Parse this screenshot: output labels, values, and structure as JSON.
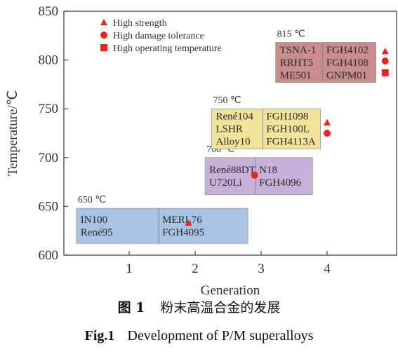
{
  "chart_data": {
    "type": "scatter",
    "xlabel": "Generation",
    "ylabel": "Temperature/℃",
    "xlim": [
      0,
      4.9
    ],
    "ylim": [
      600,
      850
    ],
    "xticks": [
      "1",
      "2",
      "3",
      "4"
    ],
    "yticks": [
      "600",
      "650",
      "700",
      "750",
      "800",
      "850"
    ],
    "legend": {
      "placement": "top-left",
      "entries": [
        {
          "label": "High strength",
          "marker": "triangle"
        },
        {
          "label": "High damage tolerance",
          "marker": "circle"
        },
        {
          "label": "High operating temperature",
          "marker": "square"
        }
      ]
    },
    "marker_color": "#e8231f",
    "groups": [
      {
        "temperature_label": "650 ℃",
        "temperature": 650,
        "generation": 1,
        "color": "#a9c3e4",
        "alloys": [
          [
            "IN100",
            "René95"
          ],
          [
            "MERL76",
            "FGH4095"
          ]
        ],
        "x_span": [
          -0.8,
          1.8
        ],
        "y_span": [
          612,
          648
        ],
        "markers": [
          {
            "type": "triangle",
            "x": 1.9,
            "y": 633
          }
        ]
      },
      {
        "temperature_label": "700 ℃",
        "temperature": 700,
        "generation": 2,
        "color": "#c8b1d8",
        "alloys": [
          [
            "René88DT",
            "U720Li"
          ],
          [
            "N18",
            "FGH4096"
          ]
        ],
        "x_span": [
          0.15,
          1.78
        ],
        "y_span": [
          662,
          700
        ],
        "markers": [
          {
            "type": "circle",
            "x": 2.9,
            "y": 682
          }
        ]
      },
      {
        "temperature_label": "750 ℃",
        "temperature": 750,
        "generation": 3,
        "color": "#f1e49a",
        "alloys": [
          [
            "René104",
            "LSHR",
            "Alloy10"
          ],
          [
            "FGH1098",
            "FGH100L",
            "FGH4113A"
          ]
        ],
        "x_span": [
          -0.75,
          0.9
        ],
        "y_span": [
          709,
          750
        ],
        "markers": [
          {
            "type": "triangle",
            "x": 4,
            "y": 736
          },
          {
            "type": "circle",
            "x": 4,
            "y": 725
          }
        ]
      },
      {
        "temperature_label": "815 ℃",
        "temperature": 815,
        "generation": 4,
        "color": "#c98d8d",
        "alloys": [
          [
            "TSNA-1",
            "RRHT5",
            "ME501"
          ],
          [
            "FGH4102",
            "FGH4108",
            "GNPM01"
          ]
        ],
        "x_span": [
          -0.78,
          0.74
        ],
        "y_span": [
          777,
          818
        ],
        "markers": [
          {
            "type": "triangle",
            "x": 4.88,
            "y": 809
          },
          {
            "type": "circle",
            "x": 4.88,
            "y": 799
          },
          {
            "type": "square",
            "x": 4.88,
            "y": 787
          }
        ]
      }
    ]
  },
  "caption": {
    "cn_label": "图 1",
    "cn_text": "粉末高温合金的发展",
    "en_label": "Fig.1",
    "en_text": "Development of P/M superalloys"
  }
}
